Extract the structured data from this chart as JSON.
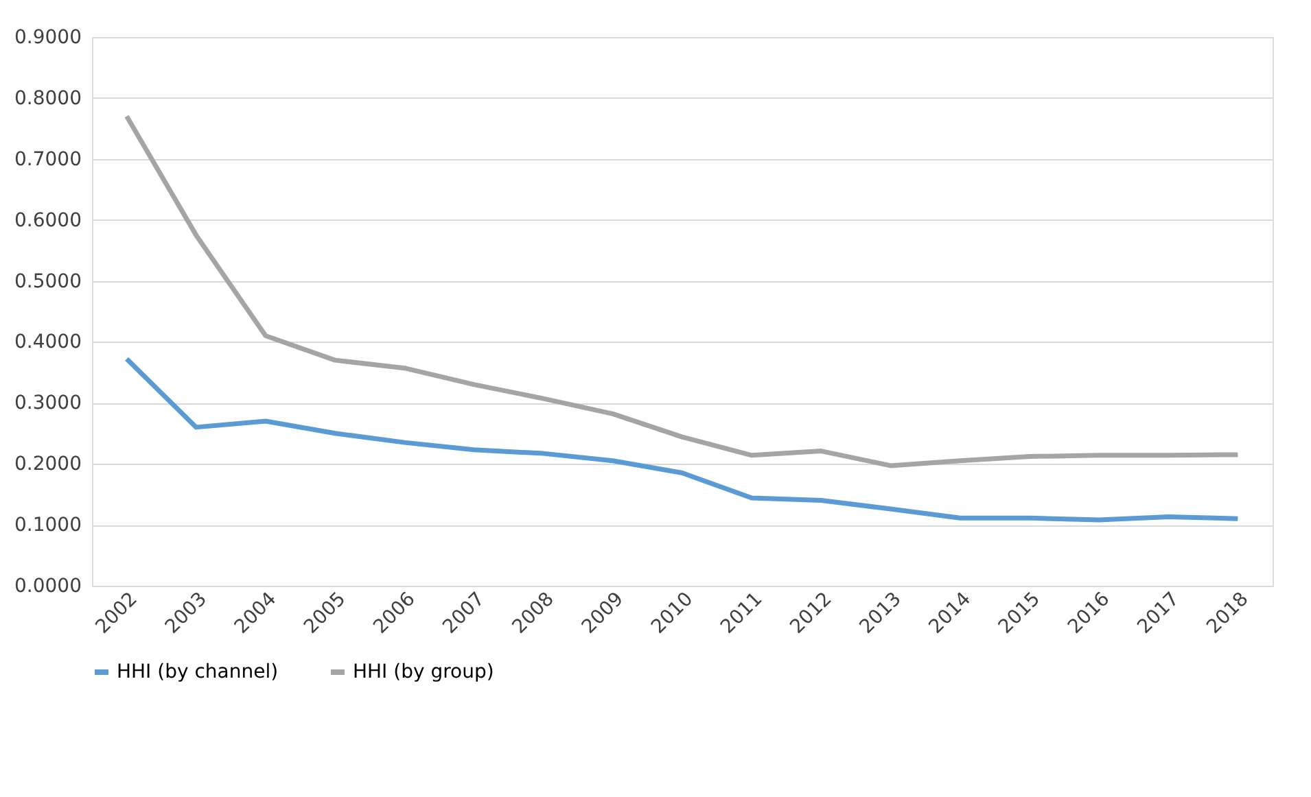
{
  "chart_data": {
    "type": "line",
    "categories": [
      "2002",
      "2003",
      "2004",
      "2005",
      "2006",
      "2007",
      "2008",
      "2009",
      "2010",
      "2011",
      "2012",
      "2013",
      "2014",
      "2015",
      "2016",
      "2017",
      "2018"
    ],
    "series": [
      {
        "name": "HHI (by channel)",
        "color": "#5b9bd5",
        "values": [
          0.372,
          0.26,
          0.27,
          0.25,
          0.235,
          0.223,
          0.217,
          0.205,
          0.185,
          0.144,
          0.14,
          0.126,
          0.111,
          0.111,
          0.108,
          0.113,
          0.11
        ]
      },
      {
        "name": "HHI (by group)",
        "color": "#a5a5a5",
        "values": [
          0.77,
          0.575,
          0.41,
          0.37,
          0.357,
          0.33,
          0.307,
          0.282,
          0.244,
          0.214,
          0.221,
          0.197,
          0.205,
          0.212,
          0.214,
          0.214,
          0.215
        ]
      }
    ],
    "ylim": [
      0,
      0.9
    ],
    "yticks": [
      {
        "value": 0,
        "label": "0.0000"
      },
      {
        "value": 0.1,
        "label": "0.1000"
      },
      {
        "value": 0.2,
        "label": "0.2000"
      },
      {
        "value": 0.3,
        "label": "0.3000"
      },
      {
        "value": 0.4,
        "label": "0.4000"
      },
      {
        "value": 0.5,
        "label": "0.5000"
      },
      {
        "value": 0.6,
        "label": "0.6000"
      },
      {
        "value": 0.7,
        "label": "0.7000"
      },
      {
        "value": 0.8,
        "label": "0.8000"
      },
      {
        "value": 0.9,
        "label": "0.9000"
      }
    ],
    "grid": "y",
    "legend": "bottom",
    "marker": "none",
    "line_style": "solid"
  }
}
